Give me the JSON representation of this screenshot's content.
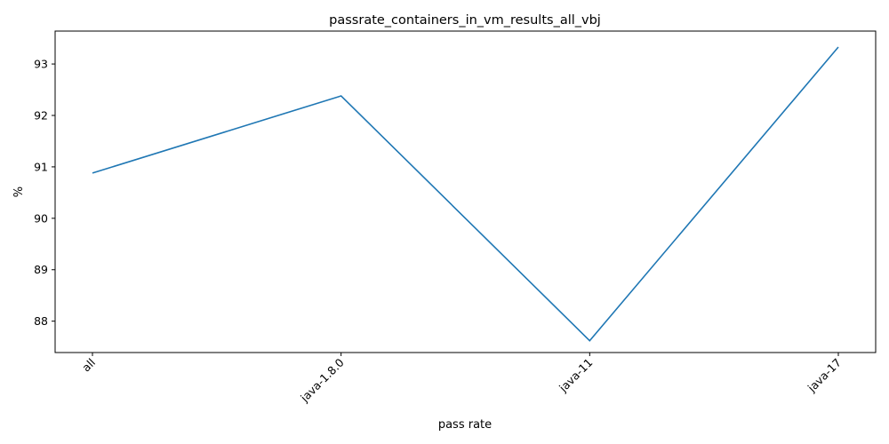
{
  "chart_data": {
    "type": "line",
    "title": "passrate_containers_in_vm_results_all_vbj",
    "xlabel": "pass rate",
    "ylabel": "%",
    "categories": [
      "all",
      "java-1.8.0",
      "java-11",
      "java-17"
    ],
    "series": [
      {
        "values": [
          90.88,
          92.38,
          87.62,
          93.33
        ],
        "color": "#1f77b4"
      }
    ],
    "yticks": [
      88,
      89,
      90,
      91,
      92,
      93
    ],
    "ylim": [
      87.39,
      93.64
    ],
    "grid": false
  }
}
